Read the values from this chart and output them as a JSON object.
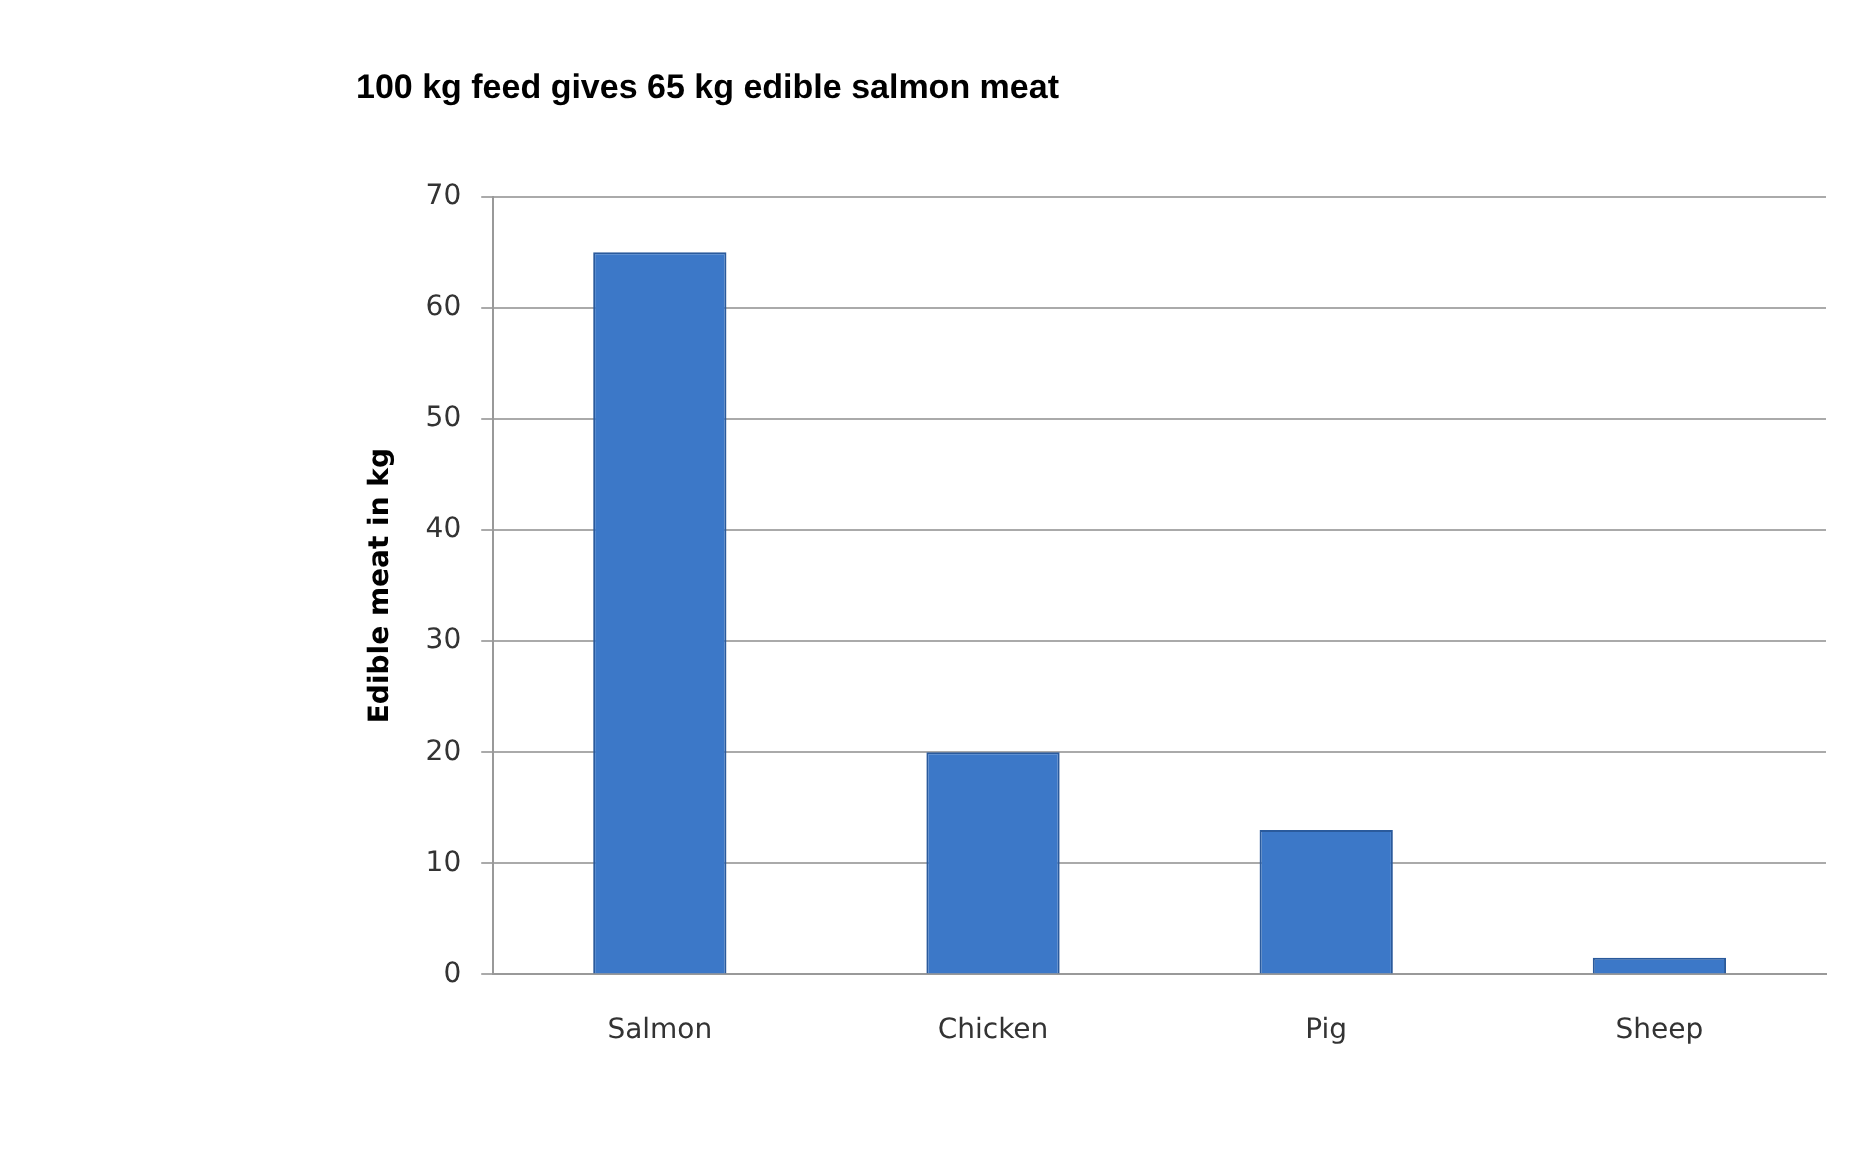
{
  "chart_data": {
    "type": "bar",
    "title": "100 kg feed gives 65 kg edible salmon meat",
    "ylabel": "Edible meat in kg",
    "categories": [
      "Salmon",
      "Chicken",
      "Pig",
      "Sheep"
    ],
    "values": [
      65,
      20,
      13,
      1.5
    ],
    "color": "#3c78c8",
    "ylim": [
      0,
      70
    ],
    "yticks": [
      0,
      10,
      20,
      30,
      40,
      50,
      60,
      70
    ],
    "grid": "y",
    "legend": false
  }
}
